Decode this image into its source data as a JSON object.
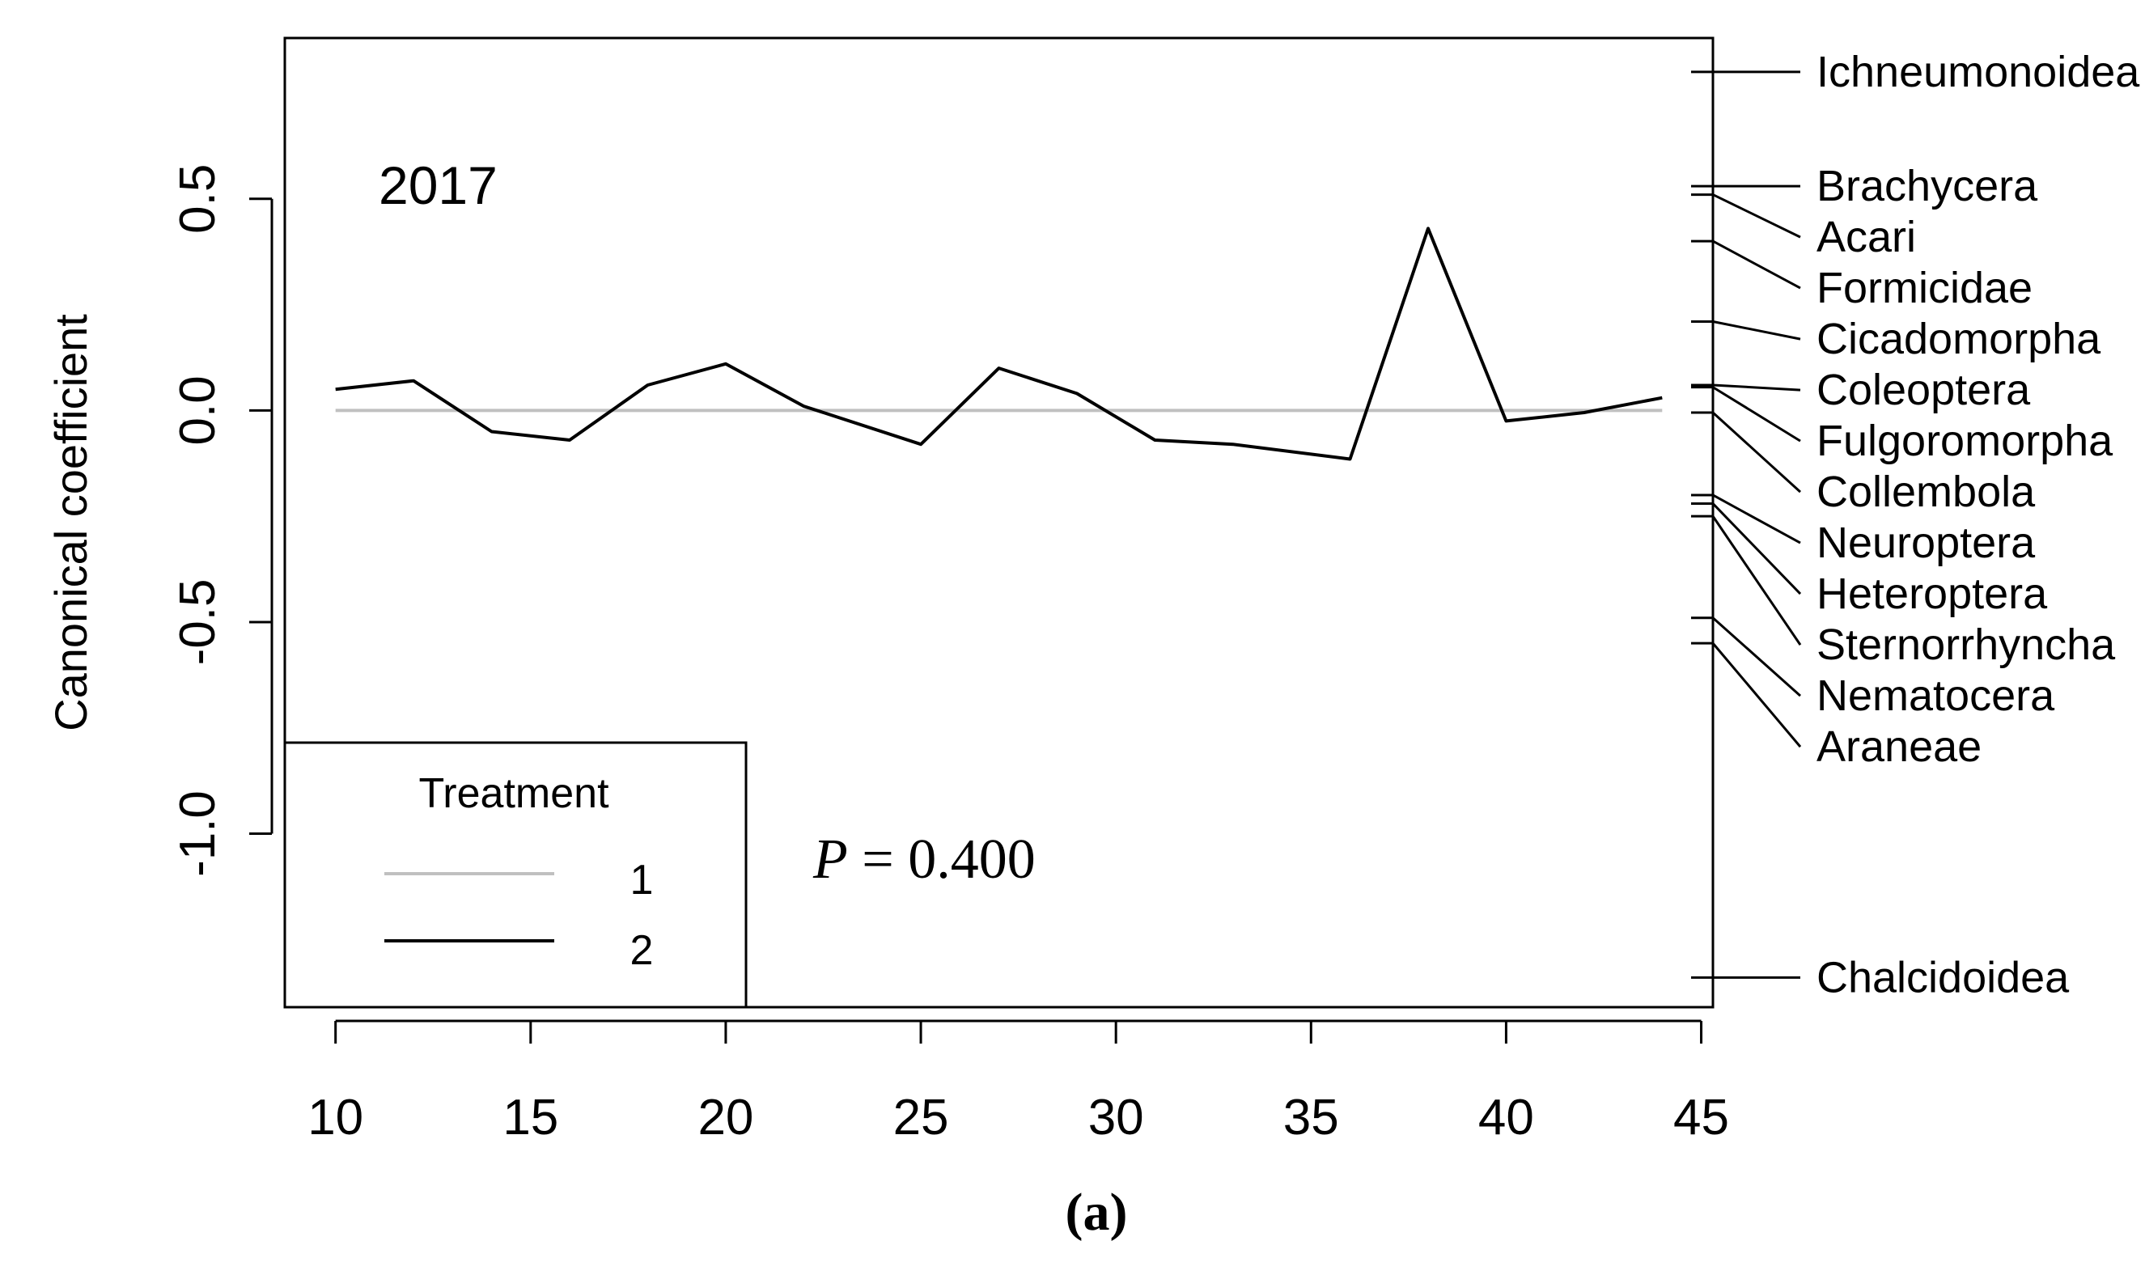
{
  "chart_data": {
    "type": "line",
    "title": "2017",
    "caption": "(a)",
    "xlabel": "",
    "ylabel": "Canonical coefficient",
    "xlim": [
      8.7,
      45.3
    ],
    "ylim": [
      -1.41,
      0.88
    ],
    "xticks": [
      10,
      15,
      20,
      25,
      30,
      35,
      40,
      45
    ],
    "yticks": [
      {
        "value": -1.0,
        "label": "-1.0"
      },
      {
        "value": -0.5,
        "label": "-0.5"
      },
      {
        "value": 0.0,
        "label": "0.0"
      },
      {
        "value": 0.5,
        "label": "0.5"
      }
    ],
    "grid": false,
    "legend": {
      "title": "Treatment",
      "placement": "bottom-left",
      "entries": [
        {
          "label": "1",
          "color": "#c0c0c0"
        },
        {
          "label": "2",
          "color": "#000000"
        }
      ]
    },
    "annotation": {
      "italic": "P",
      "text": " = 0.400"
    },
    "series": [
      {
        "name": "1",
        "color": "#c0c0c0",
        "points": [
          [
            10,
            0.0
          ],
          [
            44,
            0.0
          ]
        ]
      },
      {
        "name": "2",
        "color": "#000000",
        "points": [
          [
            10,
            0.05
          ],
          [
            12,
            0.07
          ],
          [
            14,
            -0.05
          ],
          [
            16,
            -0.07
          ],
          [
            18,
            0.06
          ],
          [
            20,
            0.11
          ],
          [
            22,
            0.01
          ],
          [
            25,
            -0.08
          ],
          [
            27,
            0.1
          ],
          [
            29,
            0.04
          ],
          [
            31,
            -0.07
          ],
          [
            33,
            -0.08
          ],
          [
            36,
            -0.115
          ],
          [
            38,
            0.43
          ],
          [
            40,
            -0.025
          ],
          [
            42,
            -0.005
          ],
          [
            44,
            0.03
          ]
        ]
      }
    ],
    "species": [
      {
        "name": "Ichneumonoidea",
        "coef": 0.8
      },
      {
        "name": "Brachycera",
        "coef": 0.53
      },
      {
        "name": "Acari",
        "coef": 0.51
      },
      {
        "name": "Formicidae",
        "coef": 0.4
      },
      {
        "name": "Cicadomorpha",
        "coef": 0.21
      },
      {
        "name": "Coleoptera",
        "coef": 0.06
      },
      {
        "name": "Fulgoromorpha",
        "coef": 0.055
      },
      {
        "name": "Collembola",
        "coef": -0.005
      },
      {
        "name": "Neuroptera",
        "coef": -0.2
      },
      {
        "name": "Heteroptera",
        "coef": -0.22
      },
      {
        "name": "Sternorrhyncha",
        "coef": -0.25
      },
      {
        "name": "Nematocera",
        "coef": -0.49
      },
      {
        "name": "Araneae",
        "coef": -0.55
      },
      {
        "name": "Chalcidoidea",
        "coef": -1.34
      }
    ]
  }
}
